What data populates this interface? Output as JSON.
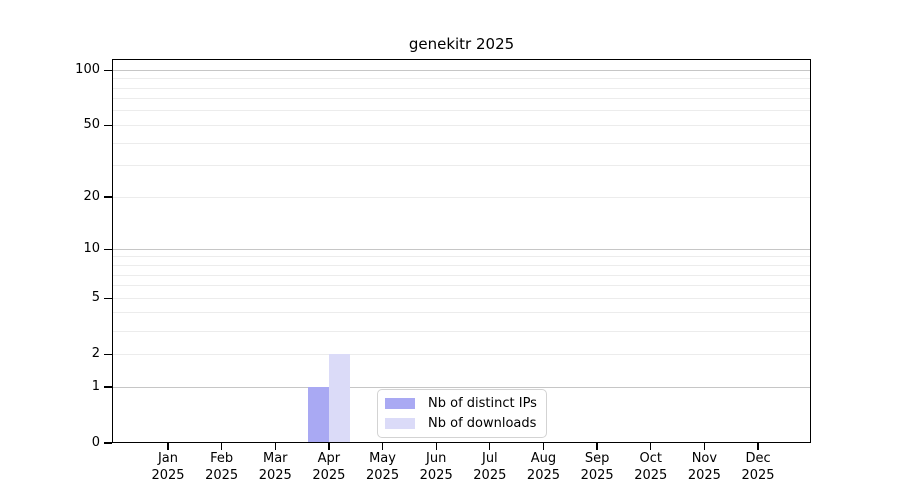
{
  "colors": {
    "background": "#ffffff",
    "text": "#000000",
    "axis": "#000000",
    "major_grid": "#c6c6c6",
    "minor_grid": "#ececec",
    "legend_border": "#d3d3d3",
    "distinct_ips_bar": "#a9a9f3",
    "downloads_bar": "#dbdbf8"
  },
  "chart_data": {
    "type": "bar",
    "title": "genekitr 2025",
    "categories": [
      "Jan 2025",
      "Feb 2025",
      "Mar 2025",
      "Apr 2025",
      "May 2025",
      "Jun 2025",
      "Jul 2025",
      "Aug 2025",
      "Sep 2025",
      "Oct 2025",
      "Nov 2025",
      "Dec 2025"
    ],
    "series": [
      {
        "name": "Nb of distinct IPs",
        "color": "#a9a9f3",
        "values": [
          0,
          0,
          0,
          1,
          0,
          0,
          0,
          0,
          0,
          0,
          0,
          0
        ]
      },
      {
        "name": "Nb of downloads",
        "color": "#dbdbf8",
        "values": [
          0,
          0,
          0,
          2,
          0,
          0,
          0,
          0,
          0,
          0,
          0,
          0
        ]
      }
    ],
    "xlabel": "",
    "ylabel": "",
    "yscale": "log1p",
    "ylim": [
      0,
      115
    ],
    "yticks": [
      0,
      1,
      2,
      5,
      10,
      20,
      50,
      100
    ],
    "major_gridlines": [
      1,
      10,
      100
    ],
    "minor_gridlines": [
      2,
      3,
      4,
      5,
      6,
      7,
      8,
      9,
      20,
      30,
      40,
      50,
      60,
      70,
      80,
      90
    ],
    "grid": "horizontal",
    "legend_position": "bottom-center"
  }
}
